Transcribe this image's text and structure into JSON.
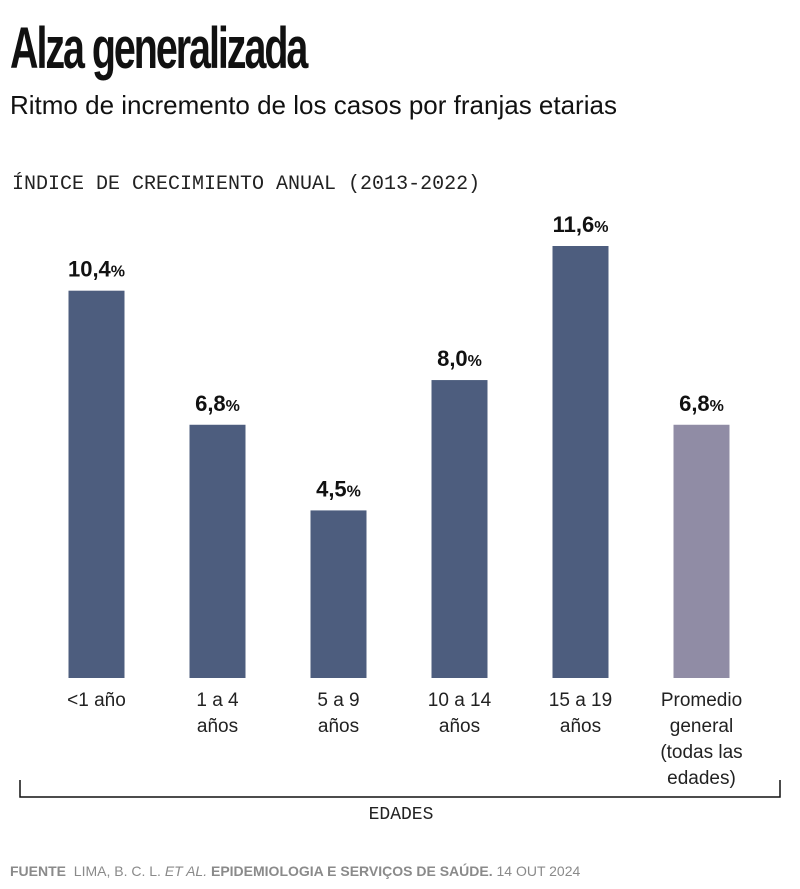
{
  "title": "Alza generalizada",
  "subtitle": "Ritmo de incremento de los casos por franjas etarias",
  "chart_data": {
    "type": "bar",
    "title": "ÍNDICE DE CRECIMIENTO ANUAL (2013-2022)",
    "xlabel": "EDADES",
    "ylabel": "",
    "categories": [
      [
        "<1 año"
      ],
      [
        "1 a 4",
        "años"
      ],
      [
        "5 a 9",
        "años"
      ],
      [
        "10 a 14",
        "años"
      ],
      [
        "15 a 19",
        "años"
      ],
      [
        "Promedio",
        "general",
        "(todas las",
        "edades)"
      ]
    ],
    "values": [
      10.4,
      6.8,
      4.5,
      8.0,
      11.6,
      6.8
    ],
    "value_labels": [
      "10,4",
      "6,8",
      "4,5",
      "8,0",
      "11,6",
      "6,8"
    ],
    "unit": "%",
    "ylim": [
      0,
      11.6
    ],
    "colors": [
      "#4d5d7e",
      "#4d5d7e",
      "#4d5d7e",
      "#4d5d7e",
      "#4d5d7e",
      "#908ca5"
    ],
    "grid": false,
    "legend": "none"
  },
  "source": {
    "label": "FUENTE",
    "authors": "LIMA, B. C. L.",
    "etal": "ET AL.",
    "journal": "EPIDEMIOLOGIA E SERVIÇOS DE SAÚDE.",
    "date": "14 OUT 2024"
  }
}
